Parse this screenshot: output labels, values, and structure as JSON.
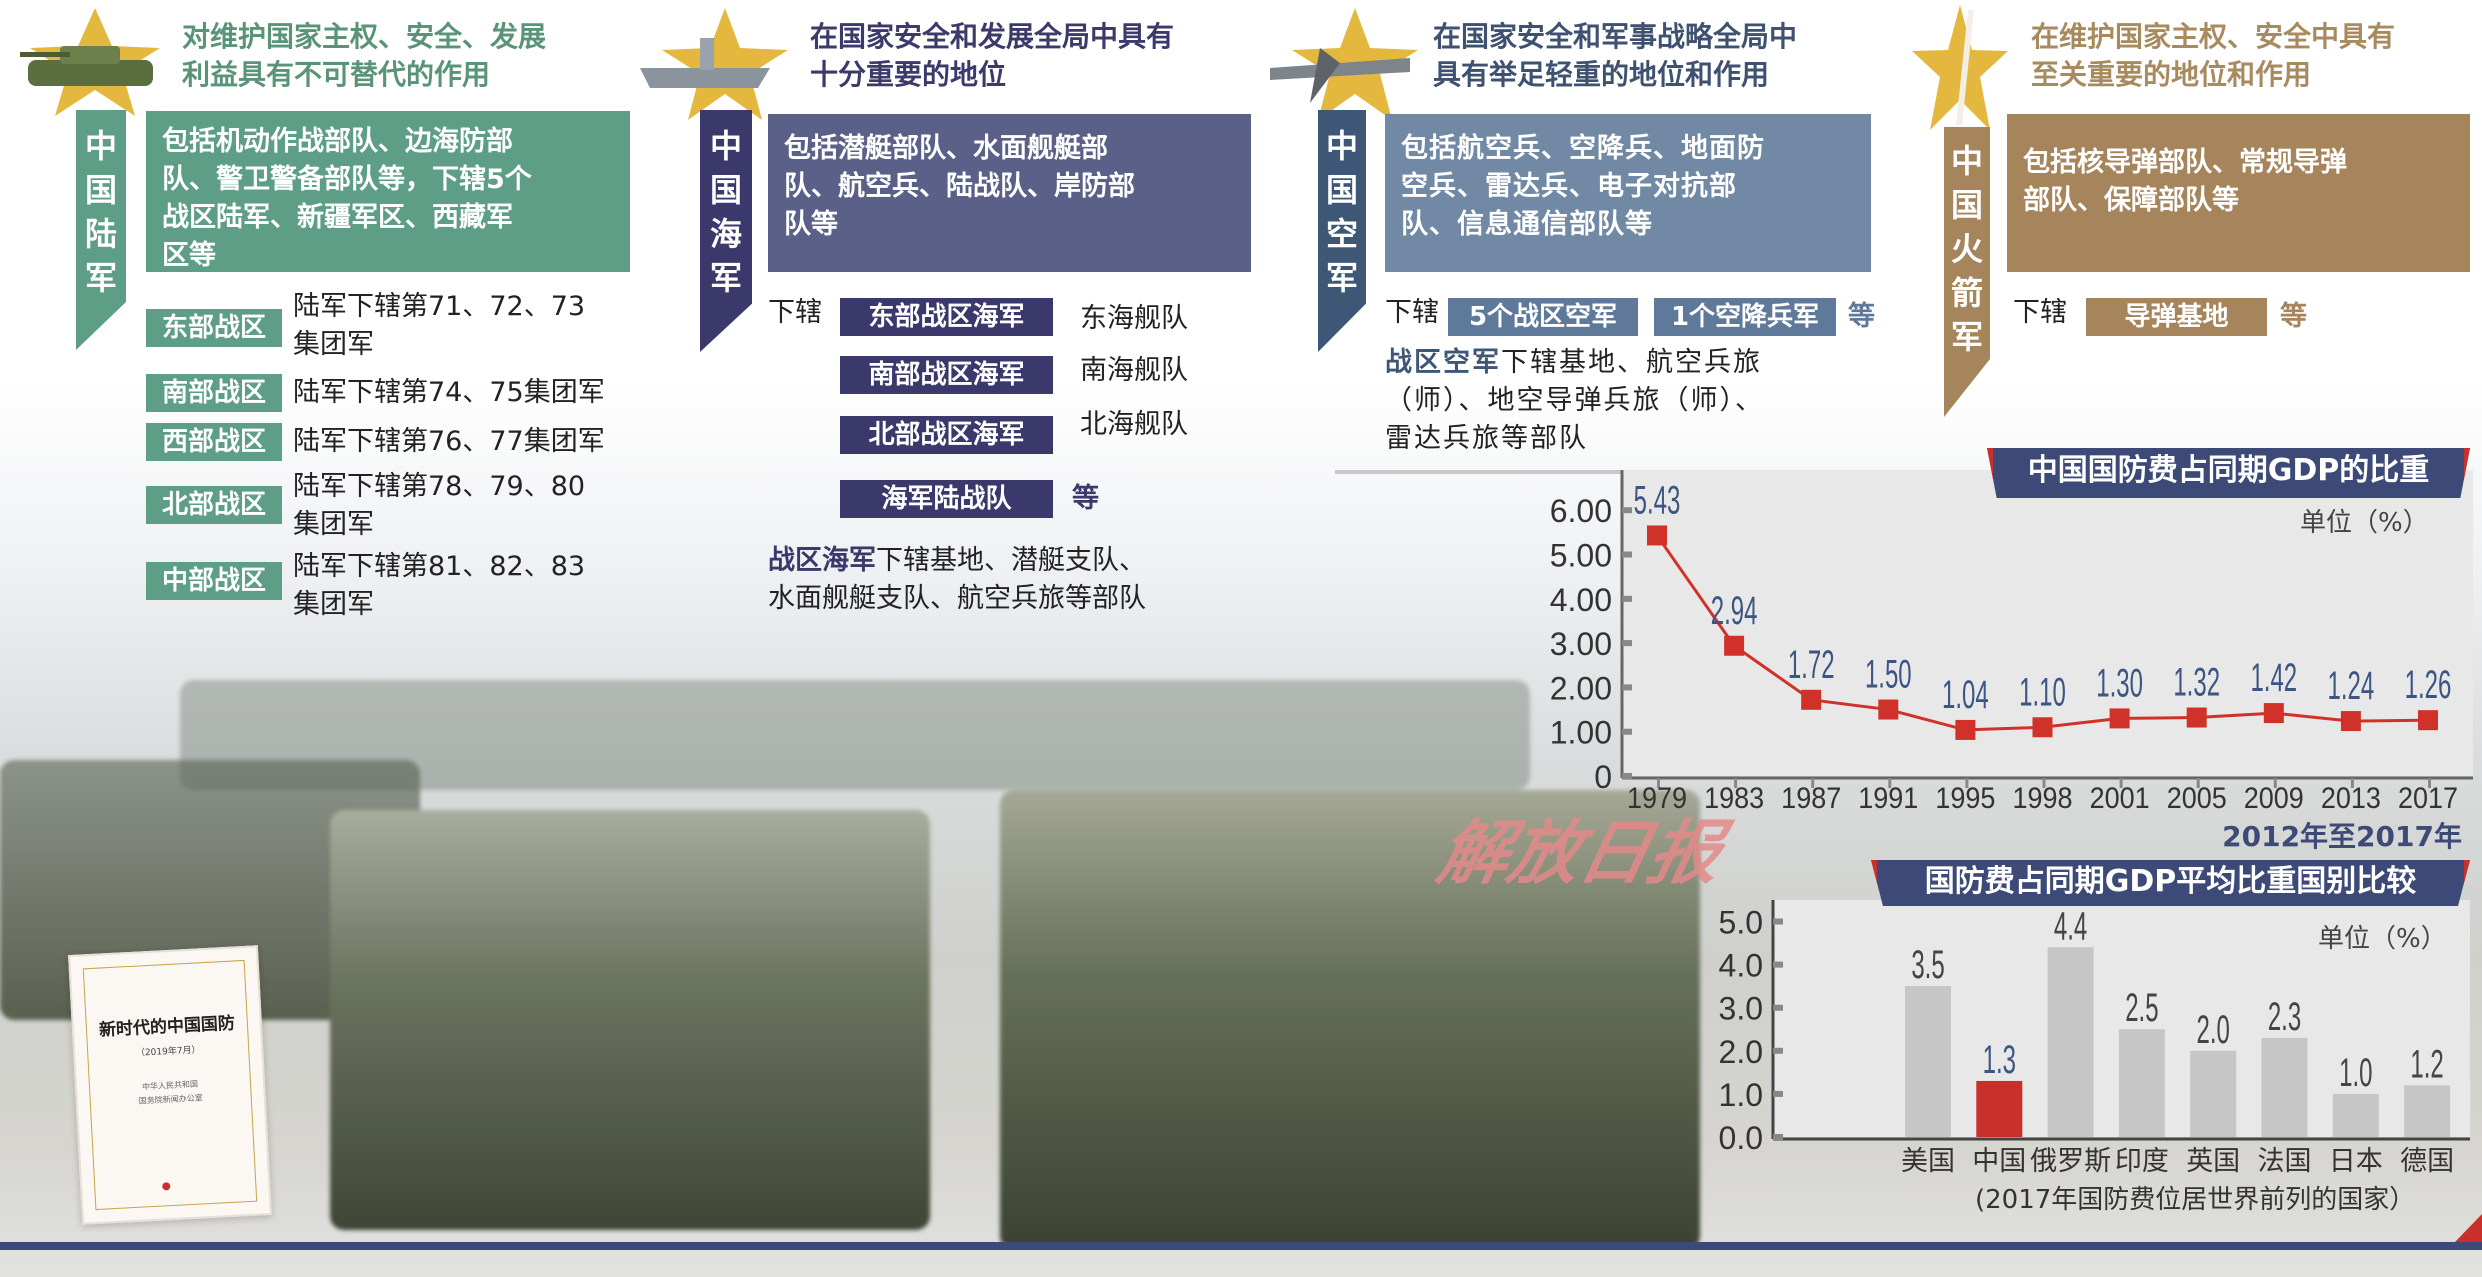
{
  "army": {
    "ribbon": "中国陆军",
    "title": [
      "对维护国家主权、安全、发展",
      "利益具有不可替代的作用"
    ],
    "desc": [
      "包括机动作战部队、边海防部",
      "队、警卫警备部队等，下辖5个",
      "战区陆军、新疆军区、西藏军",
      "区等"
    ],
    "regions": [
      {
        "label": "东部战区",
        "text": [
          "陆军下辖第71、72、73",
          "集团军"
        ]
      },
      {
        "label": "南部战区",
        "text": [
          "陆军下辖第74、75集团军"
        ]
      },
      {
        "label": "西部战区",
        "text": [
          "陆军下辖第76、77集团军"
        ]
      },
      {
        "label": "北部战区",
        "text": [
          "陆军下辖第78、79、80",
          "集团军"
        ]
      },
      {
        "label": "中部战区",
        "text": [
          "陆军下辖第81、82、83",
          "集团军"
        ]
      }
    ]
  },
  "navy": {
    "ribbon": "中国海军",
    "title": [
      "在国家安全和发展全局中具有",
      "十分重要的地位"
    ],
    "desc": [
      "包括潜艇部队、水面舰艇部",
      "队、航空兵、陆战队、岸防部",
      "队等"
    ],
    "sub_label": "下辖",
    "units": [
      {
        "label": "东部战区海军",
        "fleet": "东海舰队"
      },
      {
        "label": "南部战区海军",
        "fleet": "南海舰队"
      },
      {
        "label": "北部战区海军",
        "fleet": "北海舰队"
      },
      {
        "label": "海军陆战队",
        "fleet": ""
      }
    ],
    "etc": "等",
    "note_bold": "战区海军",
    "note": [
      "下辖基地、潜艇支队、",
      "水面舰艇支队、航空兵旅等部队"
    ]
  },
  "airforce": {
    "ribbon": "中国空军",
    "title": [
      "在国家安全和军事战略全局中",
      "具有举足轻重的地位和作用"
    ],
    "desc": [
      "包括航空兵、空降兵、地面防",
      "空兵、雷达兵、电子对抗部",
      "队、信息通信部队等"
    ],
    "sub_label": "下辖",
    "units": [
      "5个战区空军",
      "1个空降兵军"
    ],
    "etc": "等",
    "note_bold": "战区空军",
    "note": [
      "下辖基地、航空兵旅",
      "（师）、地空导弹兵旅（师）、",
      "雷达兵旅等部队"
    ]
  },
  "rocket": {
    "ribbon": "中国火箭军",
    "title": [
      "在维护国家主权、安全中具有",
      "至关重要的地位和作用"
    ],
    "desc": [
      "包括核导弹部队、常规导弹",
      "部队、保障部队等"
    ],
    "sub_label": "下辖",
    "units": [
      "导弹基地"
    ],
    "etc": "等"
  },
  "colors": {
    "army": "#5f9e86",
    "navy": "#5b6088",
    "navy_dark": "#3b386b",
    "airforce": "#7189a4",
    "air_dark": "#3f5777",
    "rocket": "#a6845c",
    "banner": "#3d4a78",
    "accent_red": "#c9302c",
    "label_blue": "#3c5582"
  },
  "book": {
    "title": "新时代的中国国防",
    "date": "（2019年7月）",
    "publisher": [
      "中华人民共和国",
      "国务院新闻办公室"
    ]
  },
  "watermark": "解放日报",
  "chart_data": [
    {
      "type": "line",
      "title": "中国国防费占同期GDP的比重",
      "unit": "单位（%）",
      "categories": [
        "1979",
        "1983",
        "1987",
        "1991",
        "1995",
        "1998",
        "2001",
        "2005",
        "2009",
        "2013",
        "2017"
      ],
      "values": [
        5.43,
        2.94,
        1.72,
        1.5,
        1.04,
        1.1,
        1.3,
        1.32,
        1.42,
        1.24,
        1.26
      ],
      "labels": [
        "5.43",
        "2.94",
        "1.72",
        "1.50",
        "1.04",
        "1.10",
        "1.30",
        "1.32",
        "1.42",
        "1.24",
        "1.26"
      ],
      "yticks": [
        "0",
        "1.00",
        "2.00",
        "3.00",
        "4.00",
        "5.00",
        "6.00"
      ],
      "ylim": [
        0,
        6.5
      ],
      "color": "#d0322a"
    },
    {
      "type": "bar",
      "subtitle": "2012年至2017年",
      "title": "国防费占同期GDP平均比重国别比较",
      "unit": "单位（%）",
      "categories": [
        "美国",
        "中国",
        "俄罗斯",
        "印度",
        "英国",
        "法国",
        "日本",
        "德国"
      ],
      "values": [
        3.5,
        1.3,
        4.4,
        2.5,
        2.0,
        2.3,
        1.0,
        1.2
      ],
      "labels": [
        "3.5",
        "1.3",
        "4.4",
        "2.5",
        "2.0",
        "2.3",
        "1.0",
        "1.2"
      ],
      "highlight": "中国",
      "yticks": [
        "0.0",
        "1.0",
        "2.0",
        "3.0",
        "4.0",
        "5.0"
      ],
      "ylim": [
        0,
        5
      ],
      "footnote": "(2017年国防费位居世界前列的国家）"
    }
  ]
}
